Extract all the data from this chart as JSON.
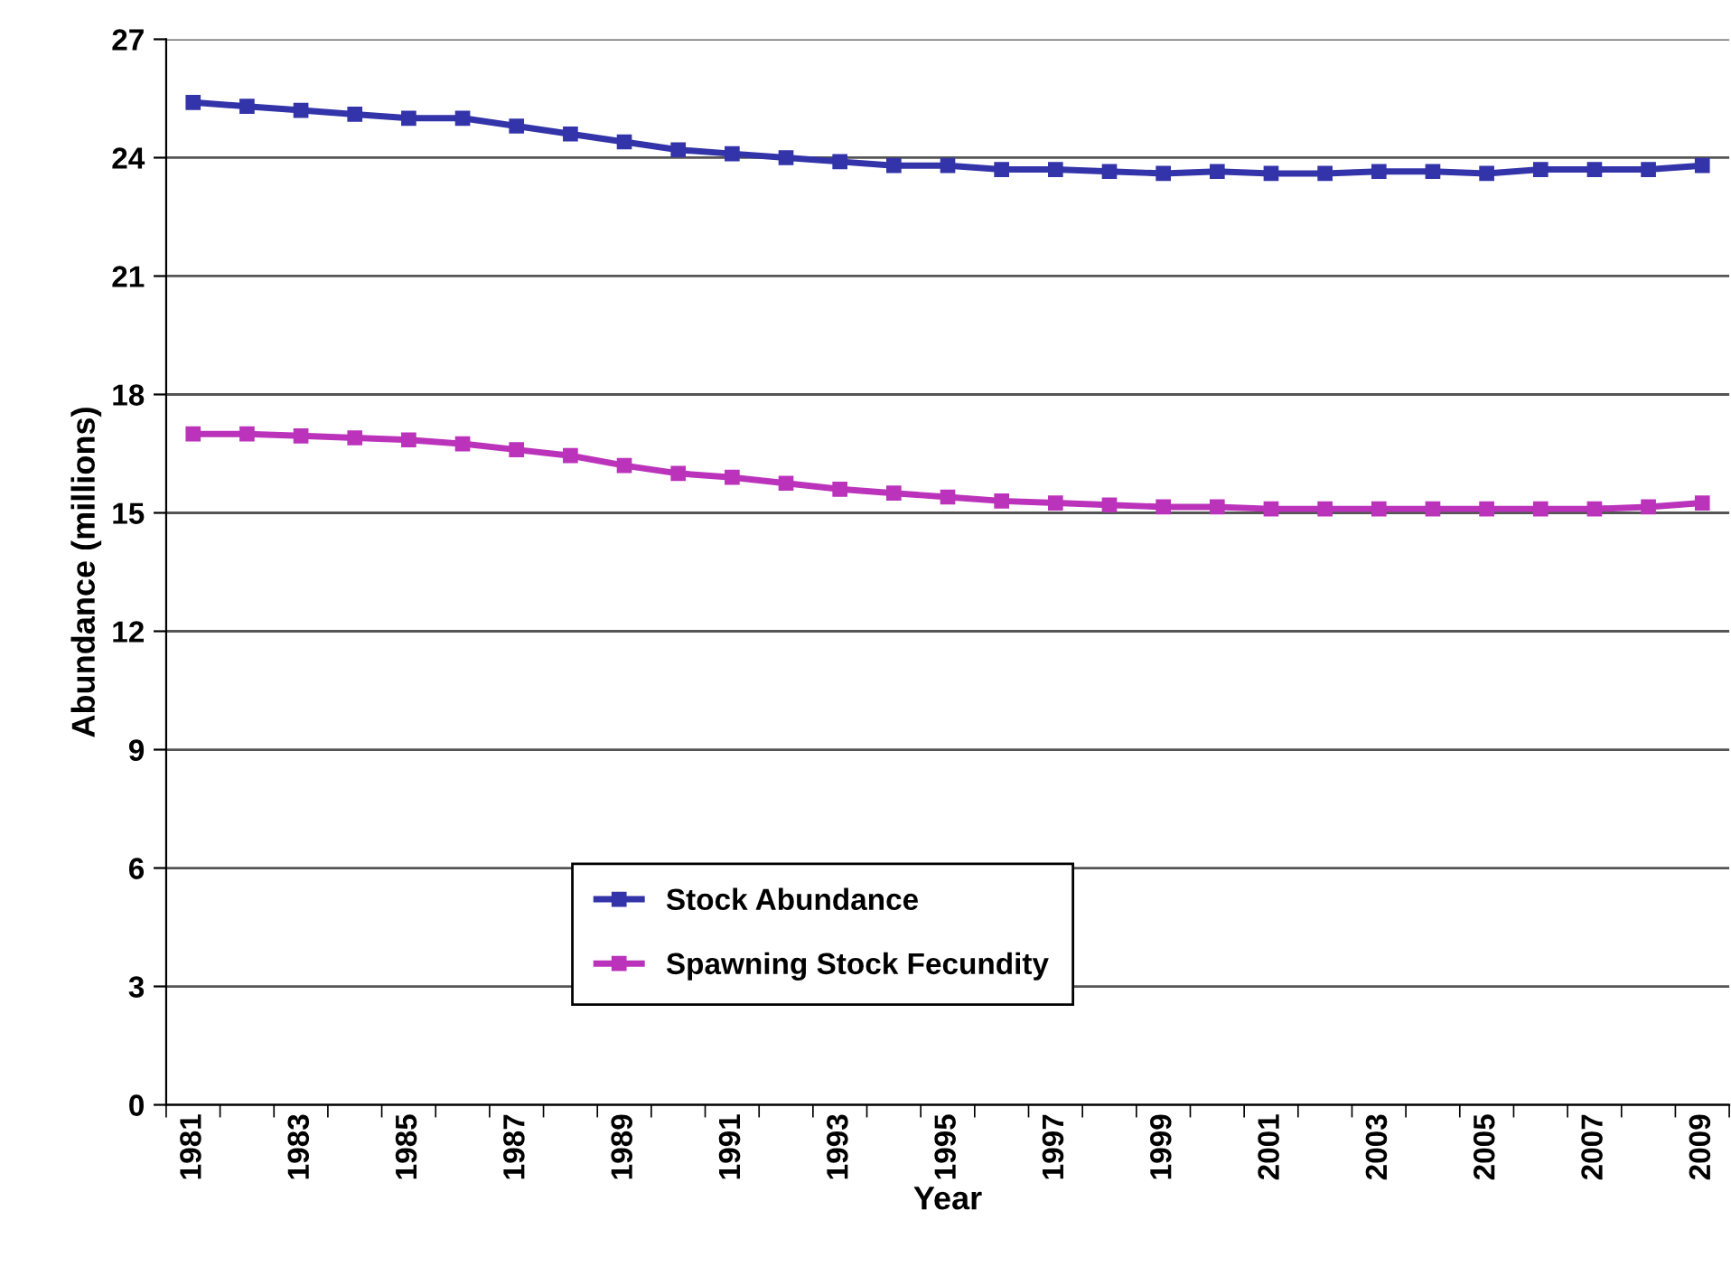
{
  "chart_data": {
    "type": "line",
    "xlabel": "Year",
    "ylabel": "Abundance (millions)",
    "categories": [
      "1981",
      null,
      "1983",
      null,
      "1985",
      null,
      "1987",
      null,
      "1989",
      null,
      "1991",
      null,
      "1993",
      null,
      "1995",
      null,
      "1997",
      null,
      "1999",
      null,
      "2001",
      null,
      "2003",
      null,
      "2005",
      null,
      "2007",
      null,
      "2009"
    ],
    "series": [
      {
        "name": "Stock Abundance",
        "color": "#3333aa",
        "values": [
          25.4,
          25.3,
          25.2,
          25.1,
          25.0,
          25.0,
          24.8,
          24.6,
          24.4,
          24.2,
          24.1,
          24.0,
          23.9,
          23.8,
          23.8,
          23.7,
          23.7,
          23.65,
          23.6,
          23.65,
          23.6,
          23.6,
          23.65,
          23.65,
          23.6,
          23.7,
          23.7,
          23.7,
          23.8
        ]
      },
      {
        "name": "Spawning Stock Fecundity",
        "color": "#bb33bb",
        "values": [
          17.0,
          17.0,
          16.95,
          16.9,
          16.85,
          16.75,
          16.6,
          16.45,
          16.2,
          16.0,
          15.9,
          15.75,
          15.6,
          15.5,
          15.4,
          15.3,
          15.25,
          15.2,
          15.15,
          15.15,
          15.1,
          15.1,
          15.1,
          15.1,
          15.1,
          15.1,
          15.1,
          15.15,
          15.25
        ]
      }
    ],
    "ylim": [
      0,
      27
    ],
    "yticks": [
      0,
      3,
      6,
      9,
      12,
      15,
      18,
      21,
      24,
      27
    ],
    "grid": "y",
    "legend": "bottom",
    "marker": "square",
    "line_style": "solid"
  }
}
